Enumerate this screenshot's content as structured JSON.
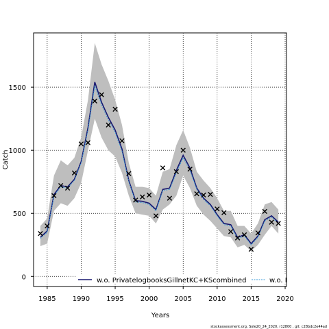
{
  "chart_data": {
    "type": "line",
    "xlabel": "Years",
    "ylabel": "Catch",
    "xlim": [
      1983,
      2020.2
    ],
    "ylim": [
      -80,
      1930
    ],
    "x_ticks": [
      1985,
      1990,
      1995,
      2000,
      2005,
      2010,
      2015,
      2020
    ],
    "y_ticks": [
      0,
      500,
      1000,
      1500
    ],
    "grid": true,
    "grid_style": "dotted",
    "legend_position": "bottom",
    "legend_entries": [
      "w.o. PrivatelogbooksGillnetKC+KScombined",
      "w.o. F"
    ],
    "footer": "stockassessment.org, Sole20_24_2020, r12800 ,  git: c28bdc2e44ad",
    "colors": {
      "band": "#bebebe",
      "series_main": "#191970",
      "series_alt": "#3a9bd8",
      "observed": "#000000",
      "grid": "#000000"
    },
    "years": [
      1984,
      1985,
      1986,
      1987,
      1988,
      1989,
      1990,
      1991,
      1992,
      1993,
      1994,
      1995,
      1996,
      1997,
      1998,
      1999,
      2000,
      2001,
      2002,
      2003,
      2004,
      2005,
      2006,
      2007,
      2008,
      2009,
      2010,
      2011,
      2012,
      2013,
      2014,
      2015,
      2016,
      2017,
      2018,
      2019
    ],
    "band_upper": [
      400,
      460,
      800,
      920,
      880,
      940,
      1100,
      1400,
      1850,
      1680,
      1550,
      1400,
      1200,
      900,
      710,
      710,
      700,
      640,
      830,
      850,
      1040,
      1160,
      1020,
      830,
      760,
      700,
      620,
      520,
      520,
      400,
      400,
      340,
      420,
      570,
      590,
      530
    ],
    "band_lower": [
      240,
      260,
      520,
      580,
      560,
      620,
      740,
      1000,
      1250,
      1100,
      1000,
      950,
      820,
      640,
      500,
      490,
      480,
      420,
      530,
      570,
      640,
      800,
      700,
      560,
      490,
      440,
      380,
      320,
      310,
      230,
      250,
      200,
      250,
      330,
      400,
      340
    ],
    "series": [
      {
        "name": "w.o. PrivatelogbooksGillnetKC+KScombined",
        "line_style": "solid",
        "values": [
          310,
          360,
          650,
          720,
          710,
          770,
          910,
          1180,
          1540,
          1380,
          1260,
          1160,
          1010,
          760,
          600,
          595,
          580,
          530,
          690,
          700,
          840,
          960,
          860,
          700,
          620,
          570,
          490,
          420,
          410,
          310,
          330,
          260,
          320,
          450,
          480,
          430
        ]
      },
      {
        "name": "w.o. F",
        "line_style": "dashed",
        "values": [
          300,
          350,
          640,
          710,
          700,
          760,
          900,
          1160,
          1510,
          1360,
          1240,
          1140,
          990,
          750,
          590,
          585,
          570,
          520,
          680,
          690,
          820,
          940,
          840,
          690,
          610,
          560,
          480,
          410,
          400,
          300,
          320,
          250,
          310,
          440,
          470,
          420
        ]
      }
    ],
    "observed": [
      {
        "x": 1984,
        "y": 340
      },
      {
        "x": 1985,
        "y": 400
      },
      {
        "x": 1986,
        "y": 640
      },
      {
        "x": 1987,
        "y": 720
      },
      {
        "x": 1988,
        "y": 700
      },
      {
        "x": 1989,
        "y": 820
      },
      {
        "x": 1990,
        "y": 1050
      },
      {
        "x": 1991,
        "y": 1060
      },
      {
        "x": 1992,
        "y": 1390
      },
      {
        "x": 1993,
        "y": 1440
      },
      {
        "x": 1994,
        "y": 1200
      },
      {
        "x": 1995,
        "y": 1325
      },
      {
        "x": 1996,
        "y": 1075
      },
      {
        "x": 1997,
        "y": 815
      },
      {
        "x": 1998,
        "y": 605
      },
      {
        "x": 1999,
        "y": 630
      },
      {
        "x": 2000,
        "y": 645
      },
      {
        "x": 2001,
        "y": 480
      },
      {
        "x": 2002,
        "y": 860
      },
      {
        "x": 2003,
        "y": 620
      },
      {
        "x": 2004,
        "y": 830
      },
      {
        "x": 2005,
        "y": 1000
      },
      {
        "x": 2006,
        "y": 850
      },
      {
        "x": 2007,
        "y": 655
      },
      {
        "x": 2008,
        "y": 645
      },
      {
        "x": 2009,
        "y": 650
      },
      {
        "x": 2010,
        "y": 535
      },
      {
        "x": 2011,
        "y": 505
      },
      {
        "x": 2012,
        "y": 355
      },
      {
        "x": 2013,
        "y": 305
      },
      {
        "x": 2014,
        "y": 330
      },
      {
        "x": 2015,
        "y": 215
      },
      {
        "x": 2016,
        "y": 345
      },
      {
        "x": 2017,
        "y": 515
      },
      {
        "x": 2018,
        "y": 430
      },
      {
        "x": 2019,
        "y": 420
      }
    ]
  }
}
